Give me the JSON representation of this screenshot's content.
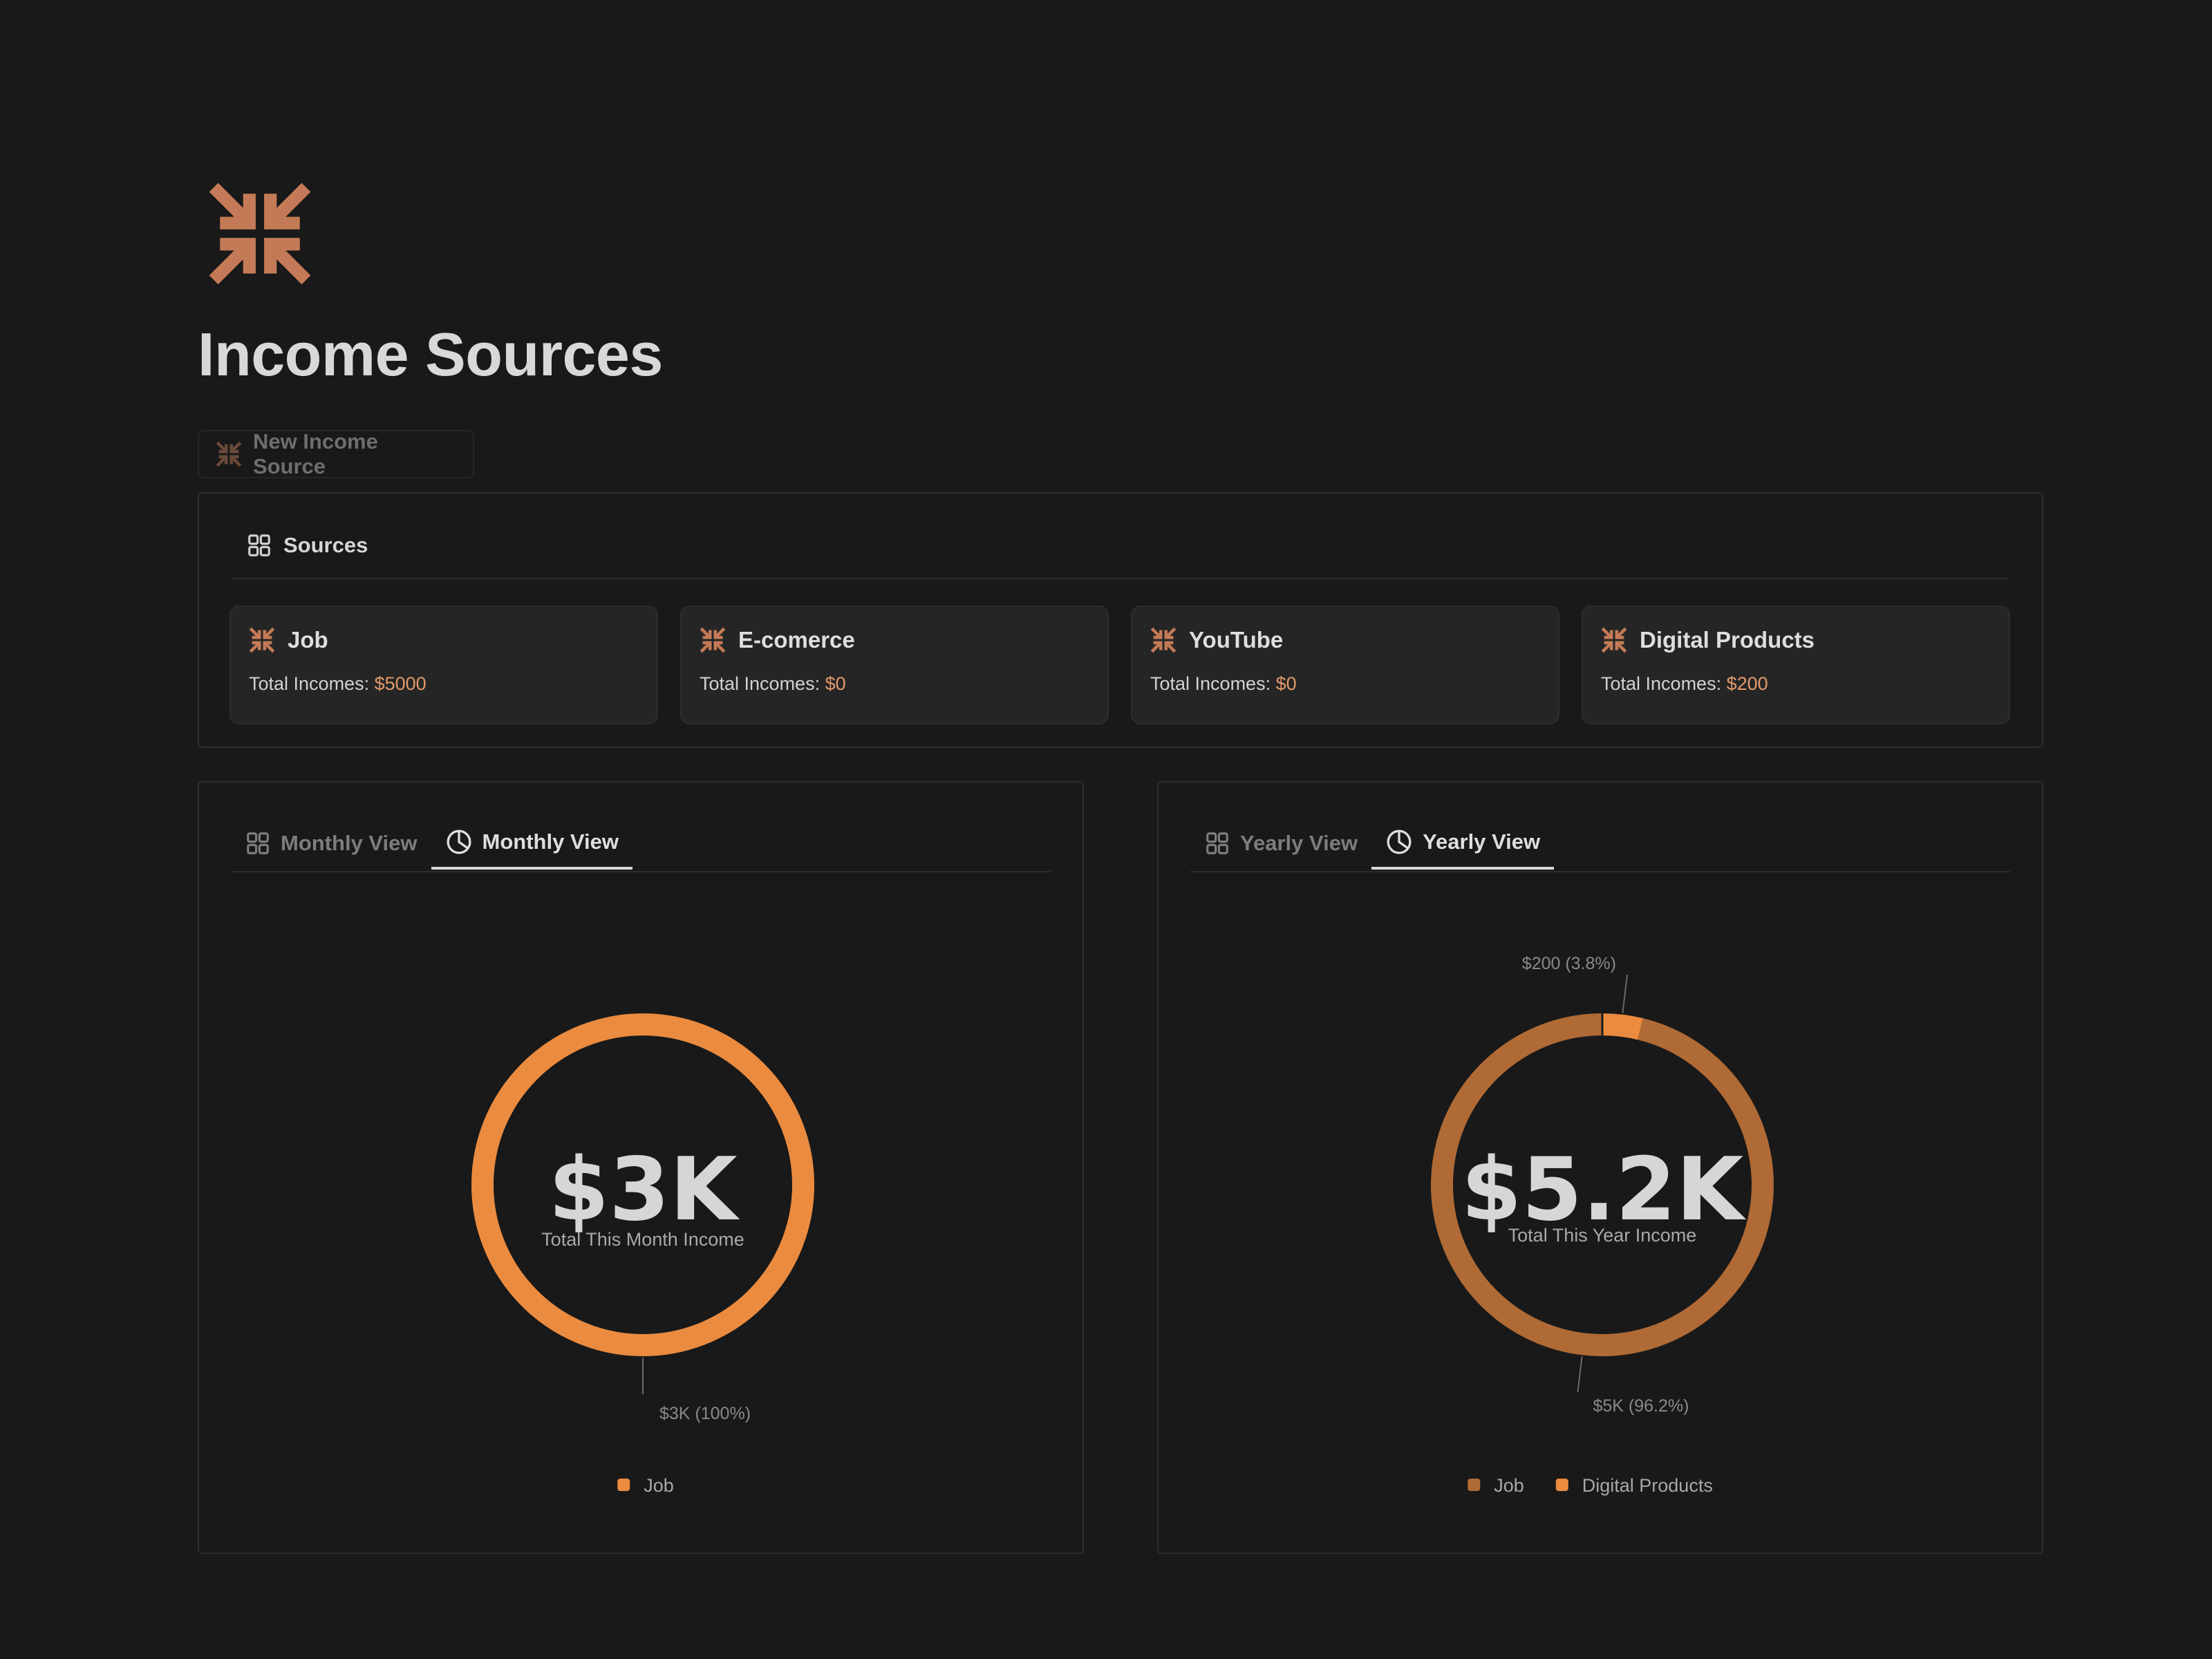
{
  "page": {
    "icon": "arrows-collapse-icon",
    "title": "Income Sources",
    "accent_color": "#c47a56"
  },
  "new_button": {
    "label": "New Income Source",
    "icon": "arrows-collapse-icon"
  },
  "sources": {
    "view_label": "Sources",
    "view_icon": "gallery-icon",
    "cards": [
      {
        "name": "Job",
        "prefix": "Total Incomes: ",
        "amount": "$5000"
      },
      {
        "name": "E-comerce",
        "prefix": "Total Incomes: ",
        "amount": "$0"
      },
      {
        "name": "YouTube",
        "prefix": "Total Incomes: ",
        "amount": "$0"
      },
      {
        "name": "Digital Products",
        "prefix": "Total Incomes: ",
        "amount": "$200"
      }
    ]
  },
  "monthly": {
    "tabs": [
      {
        "label": "Monthly View",
        "icon": "gallery-icon",
        "active": false
      },
      {
        "label": "Monthly View",
        "icon": "pie-chart-icon",
        "active": true
      }
    ]
  },
  "yearly": {
    "tabs": [
      {
        "label": "Yearly View",
        "icon": "gallery-icon",
        "active": false
      },
      {
        "label": "Yearly View",
        "icon": "pie-chart-icon",
        "active": true
      }
    ]
  },
  "chart_data": [
    {
      "type": "pie",
      "style": "donut",
      "center_value": "$3K",
      "center_label": "Total This Month Income",
      "slices": [
        {
          "name": "Job",
          "value": 3000,
          "label": "$3K (100%)",
          "color": "#ea8b40"
        }
      ],
      "legend": [
        "Job"
      ],
      "legend_position": "bottom"
    },
    {
      "type": "pie",
      "style": "donut",
      "center_value": "$5.2K",
      "center_label": "Total This Year Income",
      "slices": [
        {
          "name": "Job",
          "value": 5000,
          "label": "$5K (96.2%)",
          "color": "#b06a35"
        },
        {
          "name": "Digital Products",
          "value": 200,
          "label": "$200 (3.8%)",
          "color": "#ea8b40"
        }
      ],
      "legend": [
        "Job",
        "Digital Products"
      ],
      "legend_position": "bottom"
    }
  ]
}
